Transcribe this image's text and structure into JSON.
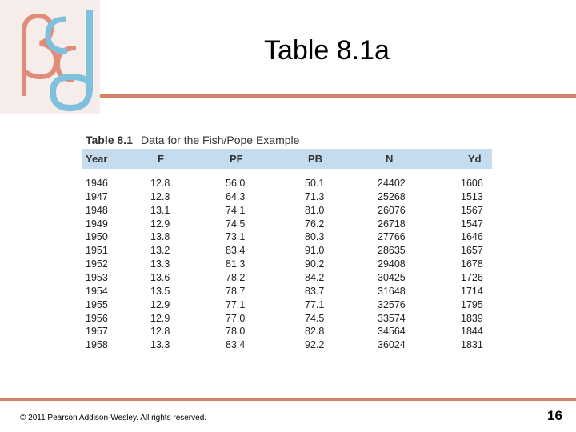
{
  "header": {
    "title": "Table 8.1a"
  },
  "table": {
    "label": "Table 8.1",
    "caption": "Data for the Fish/Pope Example",
    "columns": [
      "Year",
      "F",
      "PF",
      "PB",
      "N",
      "Yd"
    ],
    "rows": [
      [
        "1946",
        "12.8",
        "56.0",
        "50.1",
        "24402",
        "1606"
      ],
      [
        "1947",
        "12.3",
        "64.3",
        "71.3",
        "25268",
        "1513"
      ],
      [
        "1948",
        "13.1",
        "74.1",
        "81.0",
        "26076",
        "1567"
      ],
      [
        "1949",
        "12.9",
        "74.5",
        "76.2",
        "26718",
        "1547"
      ],
      [
        "1950",
        "13.8",
        "73.1",
        "80.3",
        "27766",
        "1646"
      ],
      [
        "1951",
        "13.2",
        "83.4",
        "91.0",
        "28635",
        "1657"
      ],
      [
        "1952",
        "13.3",
        "81.3",
        "90.2",
        "29408",
        "1678"
      ],
      [
        "1953",
        "13.6",
        "78.2",
        "84.2",
        "30425",
        "1726"
      ],
      [
        "1954",
        "13.5",
        "78.7",
        "83.7",
        "31648",
        "1714"
      ],
      [
        "1955",
        "12.9",
        "77.1",
        "77.1",
        "32576",
        "1795"
      ],
      [
        "1956",
        "12.9",
        "77.0",
        "74.5",
        "33574",
        "1839"
      ],
      [
        "1957",
        "12.8",
        "78.0",
        "82.8",
        "34564",
        "1844"
      ],
      [
        "1958",
        "13.3",
        "83.4",
        "92.2",
        "36024",
        "1831"
      ]
    ]
  },
  "footer": {
    "copyright": "© 2011 Pearson Addison-Wesley. All rights reserved.",
    "page_number": "16"
  }
}
